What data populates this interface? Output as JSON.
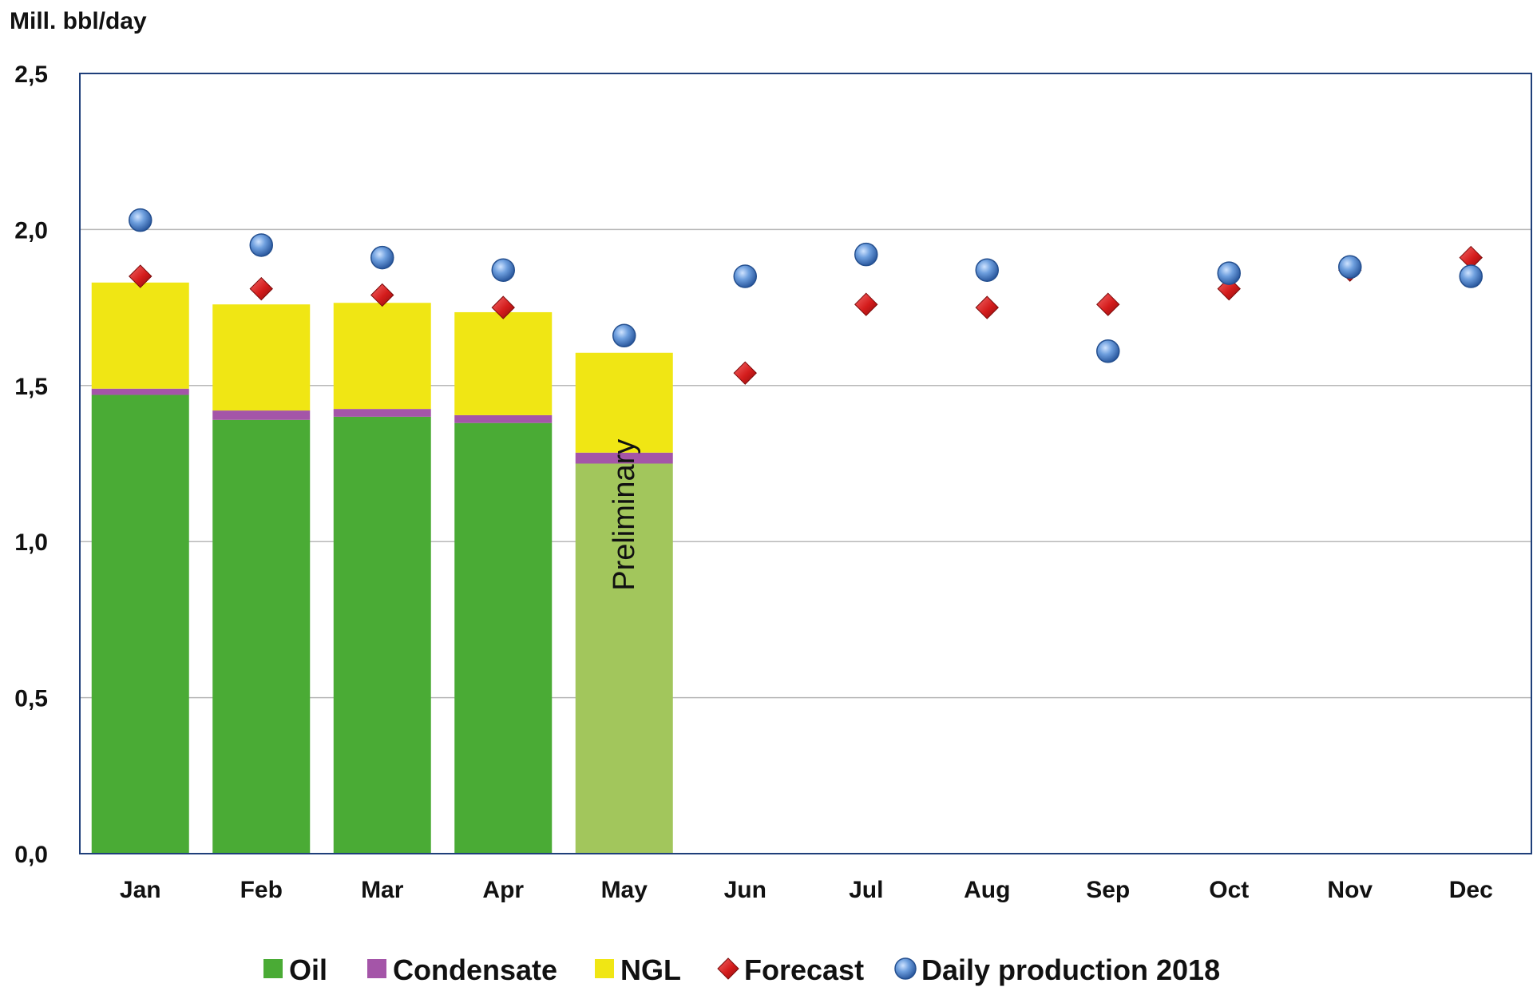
{
  "chart_data": {
    "type": "bar",
    "title": "",
    "ylabel": "Mill. bbl/day",
    "xlabel": "",
    "ylim": [
      0,
      2.5
    ],
    "yticks": [
      "0,0",
      "0,5",
      "1,0",
      "1,5",
      "2,0",
      "2,5"
    ],
    "categories": [
      "Jan",
      "Feb",
      "Mar",
      "Apr",
      "May",
      "Jun",
      "Jul",
      "Aug",
      "Sep",
      "Oct",
      "Nov",
      "Dec"
    ],
    "series": [
      {
        "name": "Oil",
        "kind": "stacked-bar",
        "color": "#4aab35",
        "values": [
          1.47,
          1.39,
          1.4,
          1.38,
          1.25,
          null,
          null,
          null,
          null,
          null,
          null,
          null
        ]
      },
      {
        "name": "Condensate",
        "kind": "stacked-bar",
        "color": "#a455a8",
        "values": [
          0.02,
          0.03,
          0.025,
          0.025,
          0.035,
          null,
          null,
          null,
          null,
          null,
          null,
          null
        ]
      },
      {
        "name": "NGL",
        "kind": "stacked-bar",
        "color": "#f0e614",
        "values": [
          0.34,
          0.34,
          0.34,
          0.33,
          0.32,
          null,
          null,
          null,
          null,
          null,
          null,
          null
        ]
      },
      {
        "name": "Forecast",
        "kind": "marker-diamond",
        "color": "#cc1a1a",
        "values": [
          1.85,
          1.81,
          1.79,
          1.75,
          null,
          1.54,
          1.76,
          1.75,
          1.76,
          1.81,
          1.87,
          1.91
        ]
      },
      {
        "name": "Daily production 2018",
        "kind": "marker-circle",
        "color": "#4f86c6",
        "values": [
          2.03,
          1.95,
          1.91,
          1.87,
          1.66,
          1.85,
          1.92,
          1.87,
          1.61,
          1.86,
          1.88,
          1.85
        ]
      }
    ],
    "preliminary_index": 4,
    "preliminary_oil_color": "#a2c65c",
    "annotation": "Preliminary",
    "legend_position": "bottom"
  }
}
